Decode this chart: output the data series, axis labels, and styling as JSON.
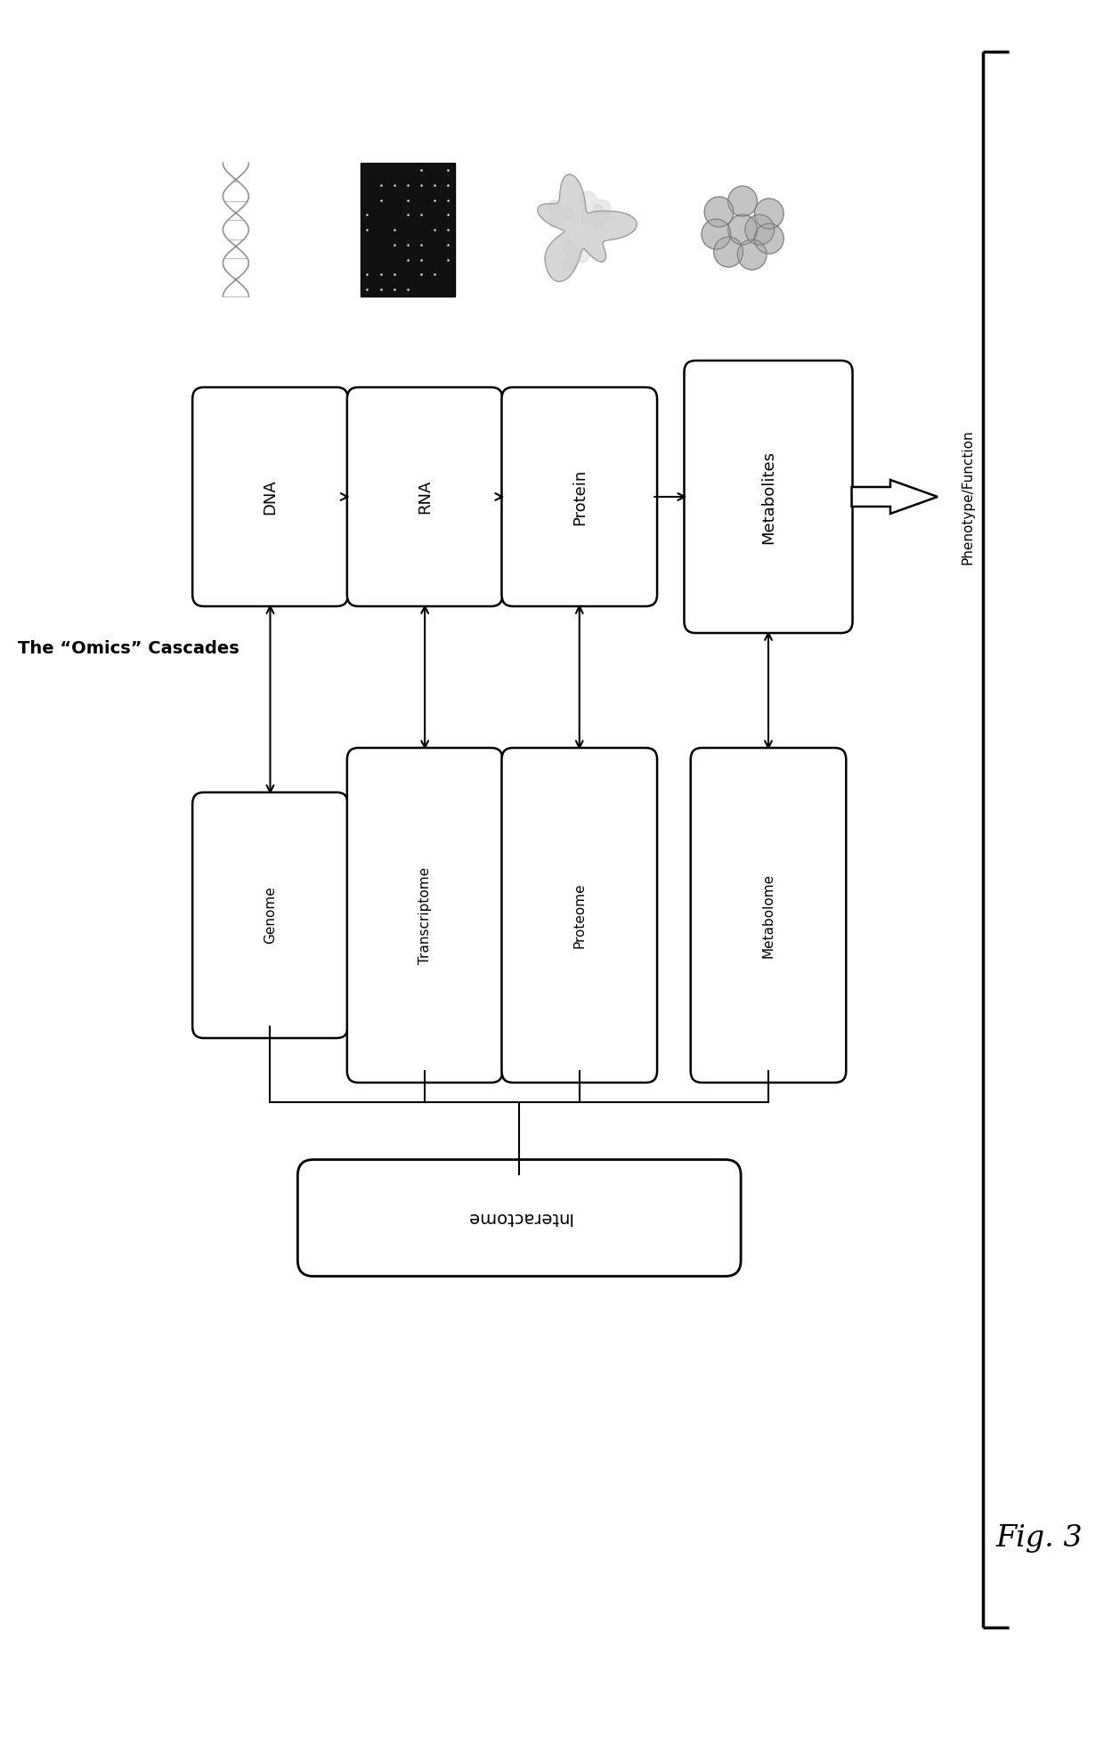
{
  "title_line1": "The “Omics” Cascades",
  "fig3_label": "Fig. 3",
  "top_row_labels": [
    "DNA",
    "RNA",
    "Protein",
    "Metabolites"
  ],
  "bottom_row_labels": [
    "Genome",
    "Transcriptome",
    "Proteome",
    "Metabolome"
  ],
  "interactome_label": "Interactome",
  "phenotype_label": "Phenotype/Function",
  "bg_color": "#ffffff",
  "box_color": "#ffffff",
  "box_edge_color": "#000000",
  "text_color": "#000000",
  "arrow_color": "#000000",
  "bracket_color": "#000000"
}
